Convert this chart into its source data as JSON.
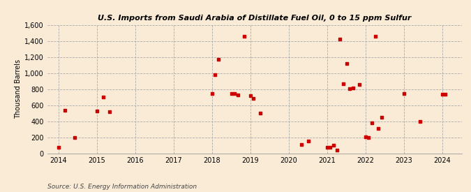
{
  "title": "U.S. Imports from Saudi Arabia of Distillate Fuel Oil, 0 to 15 ppm Sulfur",
  "ylabel": "Thousand Barrels",
  "source": "Source: U.S. Energy Information Administration",
  "background_color": "#faebd7",
  "dot_color": "#cc0000",
  "ylim": [
    0,
    1600
  ],
  "yticks": [
    0,
    200,
    400,
    600,
    800,
    1000,
    1200,
    1400,
    1600
  ],
  "xlim": [
    2013.7,
    2024.5
  ],
  "xticks": [
    2014,
    2015,
    2016,
    2017,
    2018,
    2019,
    2020,
    2021,
    2022,
    2023,
    2024
  ],
  "data_points": [
    [
      2014.0,
      80
    ],
    [
      2014.17,
      540
    ],
    [
      2014.42,
      200
    ],
    [
      2015.0,
      530
    ],
    [
      2015.17,
      700
    ],
    [
      2015.33,
      520
    ],
    [
      2018.0,
      750
    ],
    [
      2018.08,
      980
    ],
    [
      2018.17,
      1170
    ],
    [
      2018.5,
      750
    ],
    [
      2018.58,
      750
    ],
    [
      2018.67,
      730
    ],
    [
      2018.83,
      1460
    ],
    [
      2019.0,
      720
    ],
    [
      2019.08,
      690
    ],
    [
      2019.25,
      500
    ],
    [
      2020.33,
      110
    ],
    [
      2020.5,
      160
    ],
    [
      2021.0,
      75
    ],
    [
      2021.08,
      80
    ],
    [
      2021.17,
      100
    ],
    [
      2021.25,
      40
    ],
    [
      2021.33,
      1420
    ],
    [
      2021.42,
      870
    ],
    [
      2021.5,
      1120
    ],
    [
      2021.58,
      810
    ],
    [
      2021.67,
      820
    ],
    [
      2021.83,
      860
    ],
    [
      2022.0,
      210
    ],
    [
      2022.08,
      200
    ],
    [
      2022.17,
      380
    ],
    [
      2022.25,
      1460
    ],
    [
      2022.33,
      310
    ],
    [
      2022.42,
      450
    ],
    [
      2023.0,
      750
    ],
    [
      2023.42,
      400
    ],
    [
      2024.0,
      740
    ],
    [
      2024.08,
      740
    ]
  ]
}
